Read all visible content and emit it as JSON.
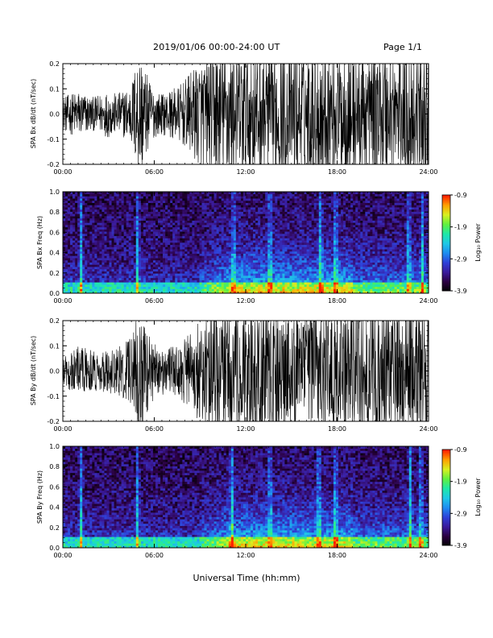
{
  "header": {
    "title": "2019/01/06  00:00-24:00 UT",
    "page": "Page 1/1"
  },
  "xlabel": "Universal Time (hh:mm)",
  "colors": {
    "trace": "#000000",
    "colormap": [
      "#000000",
      "#2a0040",
      "#3a1a9a",
      "#2e40d8",
      "#1e8cf0",
      "#1ec8e6",
      "#1ee8a8",
      "#60f040",
      "#d8f020",
      "#ffa000",
      "#ff2000"
    ]
  },
  "chart_data": [
    {
      "type": "line",
      "name": "SPA Bx dB/dt",
      "ylabel": "SPA Bx dB/dt (nT/sec)",
      "xlim": [
        0,
        24
      ],
      "ylim": [
        -0.2,
        0.2
      ],
      "x_ticks": [
        "00:00",
        "06:00",
        "12:00",
        "18:00",
        "24:00"
      ],
      "y_ticks": [
        "-0.2",
        "-0.1",
        "0.0",
        "0.1",
        "0.2"
      ],
      "x_hours": [
        0,
        0.5,
        1,
        1.5,
        2,
        2.5,
        3,
        3.5,
        4,
        4.5,
        5,
        5.5,
        6,
        6.5,
        7,
        7.5,
        8,
        8.5,
        9,
        9.5,
        10,
        10.5,
        11,
        11.5,
        12,
        12.5,
        13,
        13.5,
        14,
        14.5,
        15,
        15.5,
        16,
        16.5,
        17,
        17.5,
        18,
        18.5,
        19,
        19.5,
        20,
        20.5,
        21,
        21.5,
        22,
        22.5,
        23,
        23.5,
        24
      ],
      "amplitude": [
        0.05,
        0.06,
        0.07,
        0.06,
        0.05,
        0.06,
        0.07,
        0.06,
        0.07,
        0.09,
        0.2,
        0.12,
        0.07,
        0.06,
        0.07,
        0.08,
        0.1,
        0.13,
        0.16,
        0.16,
        0.2,
        0.2,
        0.2,
        0.2,
        0.2,
        0.2,
        0.2,
        0.2,
        0.2,
        0.2,
        0.2,
        0.2,
        0.2,
        0.2,
        0.2,
        0.2,
        0.2,
        0.2,
        0.2,
        0.2,
        0.2,
        0.2,
        0.2,
        0.2,
        0.2,
        0.2,
        0.2,
        0.2,
        0.2
      ]
    },
    {
      "type": "heatmap",
      "name": "SPA Bx Freq",
      "ylabel": "SPA Bx Freq (Hz)",
      "xlim": [
        0,
        24
      ],
      "ylim": [
        0,
        1
      ],
      "x_ticks": [
        "00:00",
        "06:00",
        "12:00",
        "18:00",
        "24:00"
      ],
      "y_ticks": [
        "0.0",
        "0.2",
        "0.4",
        "0.6",
        "0.8",
        "1.0"
      ],
      "colorbar_label": "Log₁₀ Power",
      "colorbar_ticks": [
        "-0.9",
        "-1.9",
        "-2.9",
        "-3.9"
      ],
      "clim": [
        -3.9,
        -0.9
      ],
      "bright_columns_hours": [
        1.2,
        4.9,
        11.2,
        13.6,
        16.9,
        17.9,
        22.7,
        23.6
      ],
      "low_freq_band_hz": [
        0,
        0.1
      ]
    },
    {
      "type": "line",
      "name": "SPA By dB/dt",
      "ylabel": "SPA By dB/dt (nT/sec)",
      "xlim": [
        0,
        24
      ],
      "ylim": [
        -0.2,
        0.2
      ],
      "x_ticks": [
        "00:00",
        "06:00",
        "12:00",
        "18:00",
        "24:00"
      ],
      "y_ticks": [
        "-0.2",
        "-0.1",
        "0.0",
        "0.1",
        "0.2"
      ],
      "x_hours": [
        0,
        0.5,
        1,
        1.5,
        2,
        2.5,
        3,
        3.5,
        4,
        4.5,
        5,
        5.5,
        6,
        6.5,
        7,
        7.5,
        8,
        8.5,
        9,
        9.5,
        10,
        10.5,
        11,
        11.5,
        12,
        12.5,
        13,
        13.5,
        14,
        14.5,
        15,
        15.5,
        16,
        16.5,
        17,
        17.5,
        18,
        18.5,
        19,
        19.5,
        20,
        20.5,
        21,
        21.5,
        22,
        22.5,
        23,
        23.5,
        24
      ],
      "amplitude": [
        0.05,
        0.06,
        0.08,
        0.07,
        0.06,
        0.06,
        0.07,
        0.07,
        0.08,
        0.1,
        0.2,
        0.13,
        0.08,
        0.07,
        0.07,
        0.08,
        0.1,
        0.12,
        0.15,
        0.17,
        0.2,
        0.2,
        0.2,
        0.2,
        0.2,
        0.2,
        0.2,
        0.2,
        0.2,
        0.2,
        0.2,
        0.2,
        0.2,
        0.2,
        0.2,
        0.2,
        0.2,
        0.2,
        0.2,
        0.2,
        0.2,
        0.2,
        0.2,
        0.2,
        0.2,
        0.2,
        0.2,
        0.2,
        0.2
      ]
    },
    {
      "type": "heatmap",
      "name": "SPA By Freq",
      "ylabel": "SPA By Freq (Hz)",
      "xlim": [
        0,
        24
      ],
      "ylim": [
        0,
        1
      ],
      "x_ticks": [
        "00:00",
        "06:00",
        "12:00",
        "18:00",
        "24:00"
      ],
      "y_ticks": [
        "0.0",
        "0.2",
        "0.4",
        "0.6",
        "0.8",
        "1.0"
      ],
      "colorbar_label": "Log₁₀ Power",
      "colorbar_ticks": [
        "-0.9",
        "-1.9",
        "-2.9",
        "-3.9"
      ],
      "clim": [
        -3.9,
        -0.9
      ],
      "bright_columns_hours": [
        1.2,
        4.9,
        11.1,
        13.6,
        16.8,
        17.9,
        22.8,
        23.5
      ],
      "low_freq_band_hz": [
        0,
        0.1
      ]
    }
  ]
}
